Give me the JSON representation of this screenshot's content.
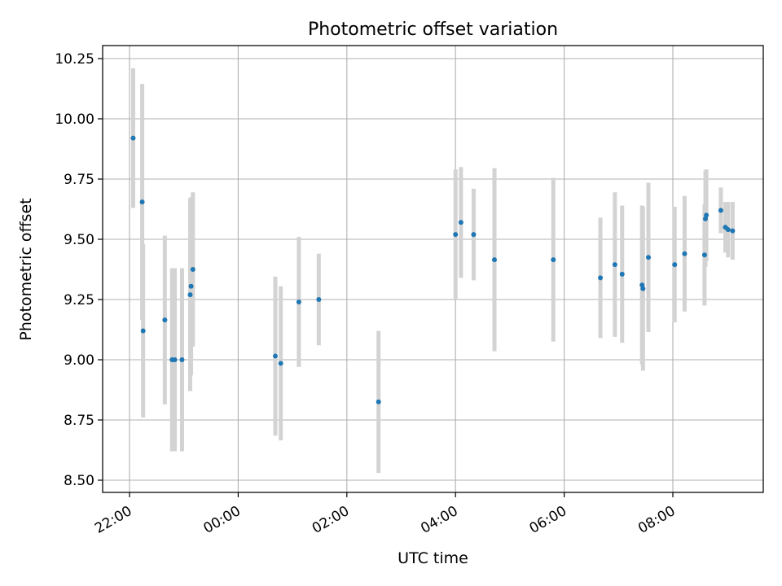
{
  "chart_data": {
    "type": "scatter",
    "title": "Photometric offset variation",
    "xlabel": "UTC time",
    "ylabel": "Photometric offset",
    "x_ticks": [
      "22:00",
      "00:00",
      "02:00",
      "04:00",
      "06:00",
      "08:00"
    ],
    "y_ticks": [
      "8.50",
      "8.75",
      "9.00",
      "9.25",
      "9.50",
      "9.75",
      "10.00",
      "10.25"
    ],
    "grid": true,
    "legend": "none",
    "colors": {
      "points": "#1f77b4",
      "errorbars": "#d3d3d3",
      "grid": "#b0b0b0"
    },
    "points": [
      {
        "x": "22:04",
        "y": 9.92,
        "yerr": 0.29
      },
      {
        "x": "22:14",
        "y": 9.655,
        "yerr": 0.49
      },
      {
        "x": "22:15",
        "y": 9.12,
        "yerr": 0.36
      },
      {
        "x": "22:39",
        "y": 9.165,
        "yerr": 0.35
      },
      {
        "x": "22:47",
        "y": 9.0,
        "yerr": 0.38
      },
      {
        "x": "22:50",
        "y": 9.0,
        "yerr": 0.38
      },
      {
        "x": "22:58",
        "y": 9.0,
        "yerr": 0.38
      },
      {
        "x": "23:07",
        "y": 9.27,
        "yerr": 0.4
      },
      {
        "x": "23:08",
        "y": 9.305,
        "yerr": 0.37
      },
      {
        "x": "23:10",
        "y": 9.375,
        "yerr": 0.32
      },
      {
        "x": "00:41",
        "y": 9.015,
        "yerr": 0.33
      },
      {
        "x": "00:47",
        "y": 8.985,
        "yerr": 0.32
      },
      {
        "x": "01:07",
        "y": 9.24,
        "yerr": 0.27
      },
      {
        "x": "01:29",
        "y": 9.25,
        "yerr": 0.19
      },
      {
        "x": "02:35",
        "y": 8.825,
        "yerr": 0.295
      },
      {
        "x": "04:00",
        "y": 9.52,
        "yerr": 0.27
      },
      {
        "x": "04:06",
        "y": 9.57,
        "yerr": 0.23
      },
      {
        "x": "04:20",
        "y": 9.52,
        "yerr": 0.19
      },
      {
        "x": "04:43",
        "y": 9.415,
        "yerr": 0.38
      },
      {
        "x": "05:48",
        "y": 9.415,
        "yerr": 0.34
      },
      {
        "x": "06:40",
        "y": 9.34,
        "yerr": 0.25
      },
      {
        "x": "06:56",
        "y": 9.395,
        "yerr": 0.3
      },
      {
        "x": "07:04",
        "y": 9.355,
        "yerr": 0.285
      },
      {
        "x": "07:26",
        "y": 9.31,
        "yerr": 0.33
      },
      {
        "x": "07:27",
        "y": 9.295,
        "yerr": 0.34
      },
      {
        "x": "07:33",
        "y": 9.425,
        "yerr": 0.31
      },
      {
        "x": "08:02",
        "y": 9.395,
        "yerr": 0.24
      },
      {
        "x": "08:13",
        "y": 9.44,
        "yerr": 0.24
      },
      {
        "x": "08:35",
        "y": 9.435,
        "yerr": 0.21
      },
      {
        "x": "08:36",
        "y": 9.585,
        "yerr": 0.2
      },
      {
        "x": "08:37",
        "y": 9.6,
        "yerr": 0.19
      },
      {
        "x": "08:53",
        "y": 9.62,
        "yerr": 0.095
      },
      {
        "x": "08:58",
        "y": 9.55,
        "yerr": 0.105
      },
      {
        "x": "09:01",
        "y": 9.54,
        "yerr": 0.115
      },
      {
        "x": "09:06",
        "y": 9.535,
        "yerr": 0.12
      }
    ]
  }
}
